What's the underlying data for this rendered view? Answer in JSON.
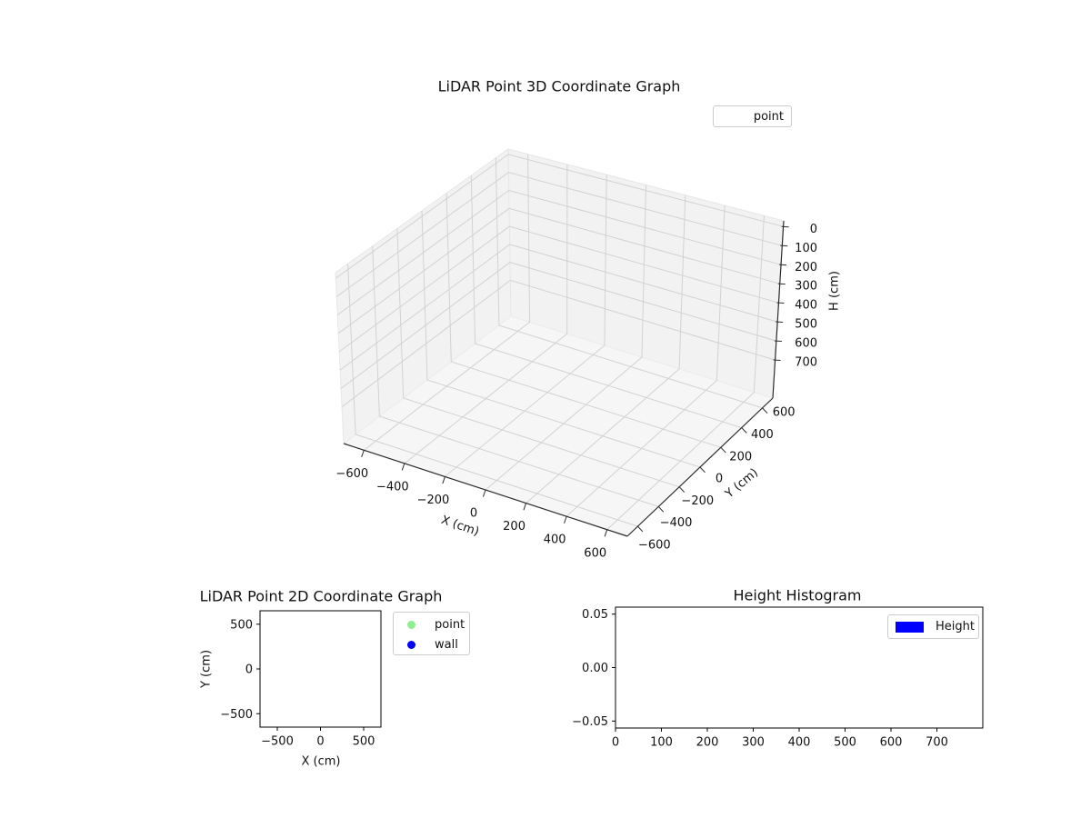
{
  "figure_background": "#ffffff",
  "colors": {
    "point": "#90ee90",
    "wall": "#0000ff",
    "height": "#0000ff",
    "axis_line": "#2b2b2b",
    "grid3d": "#d2d2d2",
    "pane_wall": "#f2f2f2",
    "pane_floor": "#f6f6f6",
    "legend_border": "#cccccc",
    "text": "#111111"
  },
  "chart_data": [
    {
      "type": "scatter3d",
      "title": "LiDAR Point 3D Coordinate Graph",
      "xlabel": "X (cm)",
      "ylabel": "Y (cm)",
      "zlabel": "H (cm)",
      "xlim": [
        -700,
        700
      ],
      "ylim": [
        -700,
        700
      ],
      "zlim": [
        -30,
        900
      ],
      "z_axis_inverted": true,
      "xticks": [
        -600,
        -400,
        -200,
        0,
        200,
        400,
        600
      ],
      "yticks": [
        -600,
        -400,
        -200,
        0,
        200,
        400,
        600
      ],
      "zticks": [
        0,
        100,
        200,
        300,
        400,
        500,
        600,
        700
      ],
      "grid": true,
      "legend": {
        "position": "upper right",
        "items": [
          {
            "label": "point",
            "marker": "none"
          }
        ]
      },
      "series": [
        {
          "name": "point",
          "points": []
        }
      ]
    },
    {
      "type": "scatter",
      "title": "LiDAR Point 2D Coordinate Graph",
      "xlabel": "X (cm)",
      "ylabel": "Y (cm)",
      "xlim": [
        -700,
        700
      ],
      "ylim": [
        -650,
        650
      ],
      "xticks": [
        -500,
        0,
        500
      ],
      "yticks": [
        500,
        0,
        -500
      ],
      "grid": false,
      "legend": {
        "position": "outside upper right",
        "items": [
          {
            "label": "point",
            "color": "#90ee90",
            "marker": "circle"
          },
          {
            "label": "wall",
            "color": "#0000ff",
            "marker": "circle"
          }
        ]
      },
      "series": [
        {
          "name": "point",
          "points": []
        },
        {
          "name": "wall",
          "points": []
        }
      ]
    },
    {
      "type": "histogram",
      "title": "Height Histogram",
      "xlabel": "",
      "ylabel": "",
      "xlim": [
        0,
        800
      ],
      "ylim": [
        -0.0565,
        0.0565
      ],
      "xticks": [
        0,
        100,
        200,
        300,
        400,
        500,
        600,
        700
      ],
      "yticks": [
        0.05,
        0.0,
        -0.05
      ],
      "ytick_decimals": 2,
      "grid": false,
      "legend": {
        "position": "upper right",
        "items": [
          {
            "label": "Height",
            "color": "#0000ff",
            "marker": "square"
          }
        ]
      },
      "series": [
        {
          "name": "Height",
          "values": []
        }
      ]
    }
  ]
}
